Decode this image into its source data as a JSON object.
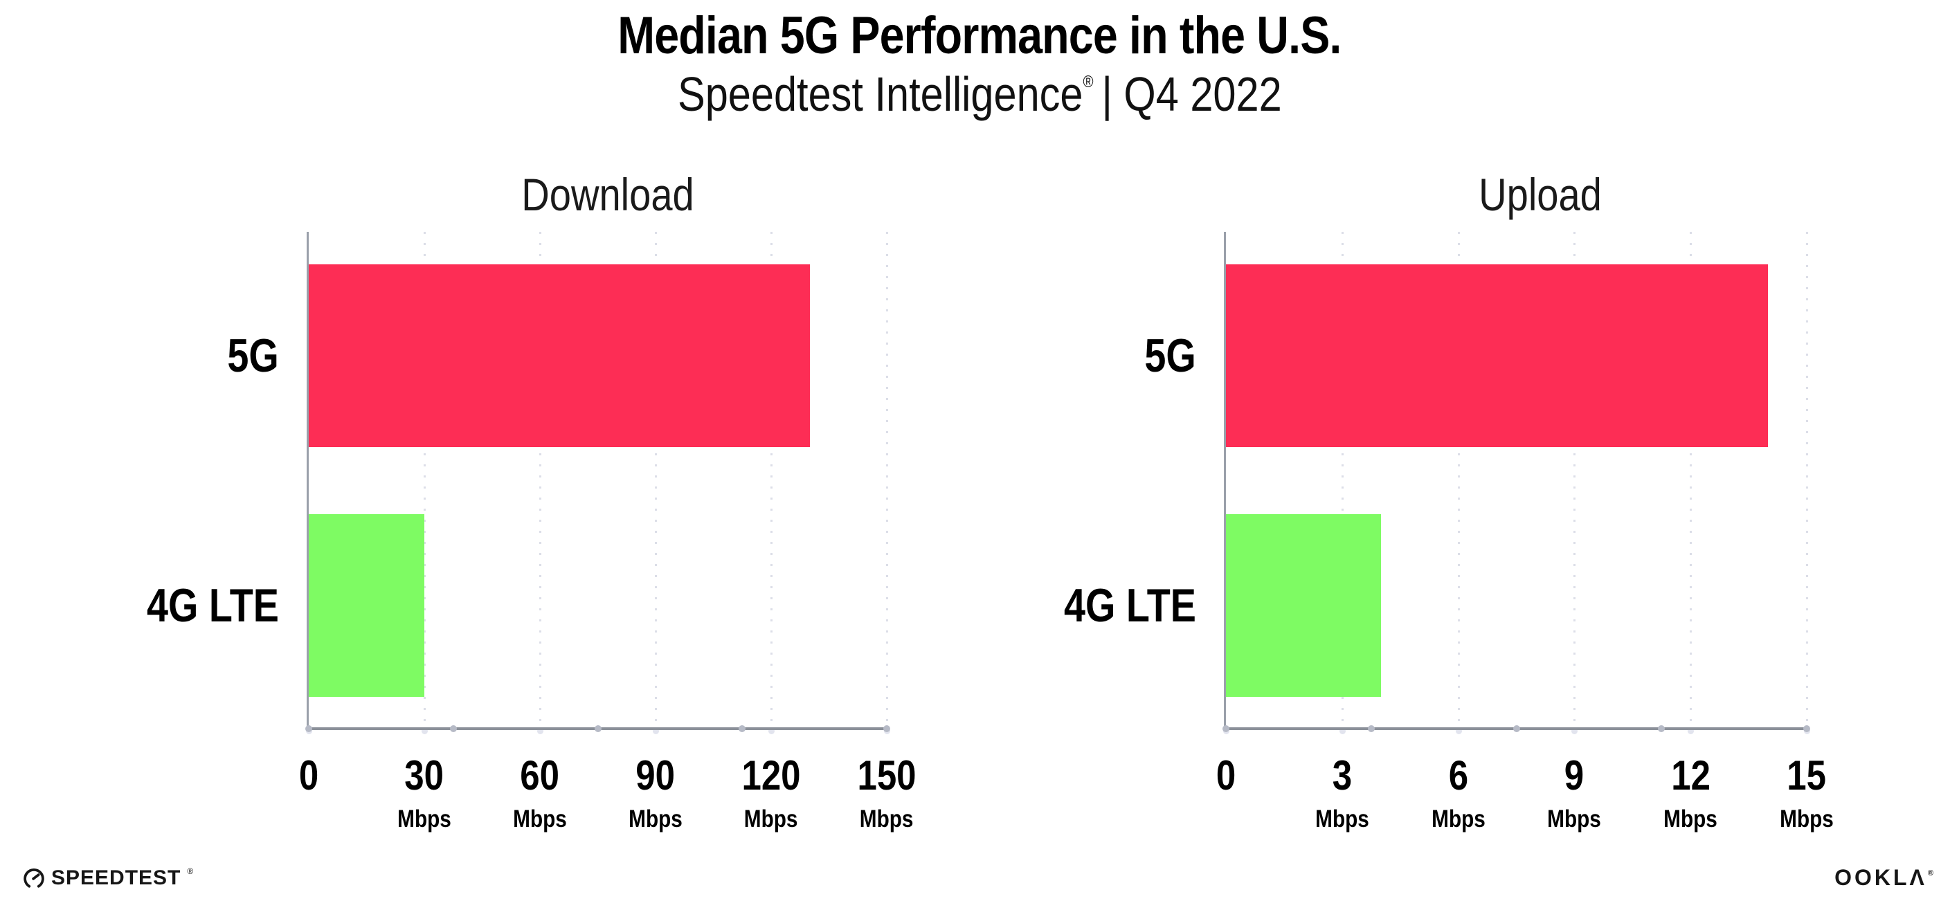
{
  "title": "Median 5G Performance in the U.S.",
  "subtitle": {
    "product": "Speedtest Intelligence",
    "reg": "®",
    "rest": "| Q4 2022"
  },
  "chart_data": {
    "type": "bar",
    "orientation": "horizontal",
    "title": "Median 5G Performance in the U.S.",
    "subtitle": "Speedtest Intelligence® | Q4 2022",
    "unit": "Mbps",
    "categories": [
      "5G",
      "4G LTE"
    ],
    "bar_colors": {
      "5G": "#FD2D55",
      "4G LTE": "#7EFB63"
    },
    "grid": "vertical-dotted",
    "legend": "none",
    "panels": [
      {
        "title": "Download",
        "xlim": [
          0,
          150
        ],
        "xticks": [
          0,
          30,
          60,
          90,
          120,
          150
        ],
        "values": {
          "5G": 130,
          "4G LTE": 30
        }
      },
      {
        "title": "Upload",
        "xlim": [
          0,
          15
        ],
        "xticks": [
          0,
          3,
          6,
          9,
          12,
          15
        ],
        "values": {
          "5G": 14,
          "4G LTE": 4
        }
      }
    ]
  },
  "colors": {
    "bar_5g": "#FD2D55",
    "bar_4g_lte": "#7EFB63",
    "x_axis_line": "#8B9099",
    "y_axis_line": "#9AA0AA",
    "gridline_dots": "#DCDEE8",
    "axis_marker_dots": "#B6BAC6",
    "background": "#FFFFFF",
    "text": "#000000"
  },
  "footer": {
    "speedtest_label": "SPEEDTEST",
    "speedtest_reg": "®",
    "ookla_label": "OOKLΛ",
    "ookla_reg": "®"
  }
}
